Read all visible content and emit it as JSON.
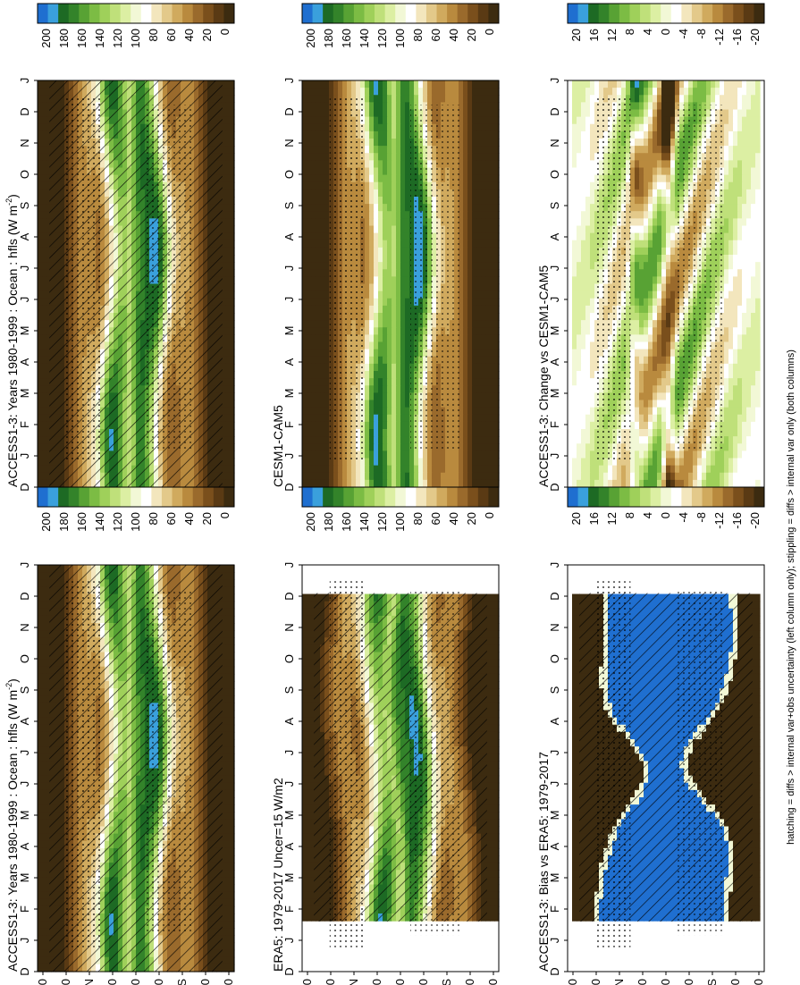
{
  "figure": {
    "footer": "hatching = diffs > internal var+obs uncertainty (left column only); stippling = diffs > internal var only (both columns)",
    "colors": {
      "abs_scale": [
        "#3c2b10",
        "#5a3a14",
        "#7a4f1c",
        "#9a6a2c",
        "#b98a3e",
        "#d0aa5e",
        "#e3c98a",
        "#f3e6bd",
        "#ffffff",
        "#f2f8d6",
        "#dcefa3",
        "#bfe07a",
        "#9fd05a",
        "#7cbc44",
        "#58a234",
        "#33832a",
        "#1d6a24",
        "#3aa0dc",
        "#1f6fd0"
      ],
      "diff_scale": [
        "#3c2b10",
        "#5a3a14",
        "#7a4f1c",
        "#9a6a2c",
        "#b98a3e",
        "#d0aa5e",
        "#e3c98a",
        "#f3e6bd",
        "#ffffff",
        "#f2f8d6",
        "#dcefa3",
        "#bfe07a",
        "#9fd05a",
        "#7cbc44",
        "#58a234",
        "#33832a",
        "#1d6a24",
        "#3aa0dc",
        "#1f6fd0"
      ]
    }
  },
  "chart_data": [
    {
      "type": "heatmap",
      "title": "ACCESS1-3: Years 1980-1999 : Ocean : hfls (W m",
      "title_sup": "-2",
      "title_close": ")",
      "x_ticks": [
        "D",
        "J",
        "F",
        "M",
        "A",
        "M",
        "J",
        "J",
        "A",
        "S",
        "O",
        "N",
        "D",
        "J"
      ],
      "y_ticks": [
        "80",
        "60",
        "°N",
        "20",
        "0",
        "20",
        "°S",
        "60",
        "80"
      ],
      "colorbar_ticks": [
        "200",
        "180",
        "160",
        "140",
        "120",
        "100",
        "80",
        "60",
        "40",
        "20",
        "0"
      ],
      "value_range": [
        0,
        200
      ]
    },
    {
      "type": "heatmap",
      "title": "ACCESS1-3: Years 1980-1999 : Ocean : hfls (W m",
      "title_sup": "-2",
      "title_close": ")",
      "x_ticks": [
        "D",
        "J",
        "F",
        "M",
        "A",
        "M",
        "J",
        "J",
        "A",
        "S",
        "O",
        "N",
        "D",
        "J"
      ],
      "y_ticks": [
        "80",
        "60",
        "°N",
        "20",
        "0",
        "20",
        "°S",
        "60",
        "80"
      ],
      "colorbar_ticks": [
        "200",
        "180",
        "160",
        "140",
        "120",
        "100",
        "80",
        "60",
        "40",
        "20",
        "0"
      ],
      "value_range": [
        0,
        200
      ]
    },
    {
      "type": "heatmap",
      "title": "CESM1-CAM5",
      "x_ticks": [
        "D",
        "J",
        "F",
        "M",
        "A",
        "M",
        "J",
        "J",
        "A",
        "S",
        "O",
        "N",
        "D",
        "J"
      ],
      "y_ticks": [
        "80",
        "60",
        "°N",
        "20",
        "0",
        "20",
        "°S",
        "60",
        "80"
      ],
      "colorbar_ticks": [
        "200",
        "180",
        "160",
        "140",
        "120",
        "100",
        "80",
        "60",
        "40",
        "20",
        "0"
      ],
      "value_range": [
        0,
        200
      ]
    },
    {
      "type": "heatmap",
      "title": "ERA5: 1979-2017 Uncer=15 W/m2",
      "x_ticks": [
        "D",
        "J",
        "F",
        "M",
        "A",
        "M",
        "J",
        "J",
        "A",
        "S",
        "O",
        "N",
        "D",
        "J"
      ],
      "y_ticks": [
        "80",
        "60",
        "°N",
        "20",
        "0",
        "20",
        "°S",
        "60",
        "80"
      ],
      "colorbar_ticks": [
        "200",
        "180",
        "160",
        "140",
        "120",
        "100",
        "80",
        "60",
        "40",
        "20",
        "0"
      ],
      "value_range": [
        0,
        200
      ]
    },
    {
      "type": "heatmap",
      "title": "ACCESS1-3: Change vs CESM1-CAM5",
      "x_ticks": [
        "D",
        "J",
        "F",
        "M",
        "A",
        "M",
        "J",
        "J",
        "A",
        "S",
        "O",
        "N",
        "D",
        "J"
      ],
      "y_ticks": [
        "80",
        "60",
        "°N",
        "20",
        "0",
        "20",
        "°S",
        "60",
        "80"
      ],
      "colorbar_ticks": [
        "20",
        "16",
        "12",
        "8",
        "4",
        "0",
        "-4",
        "-8",
        "-12",
        "-16",
        "-20"
      ],
      "value_range": [
        -20,
        20
      ]
    },
    {
      "type": "heatmap",
      "title": "ACCESS1-3: Bias vs ERA5: 1979-2017",
      "x_ticks": [
        "D",
        "J",
        "F",
        "M",
        "A",
        "M",
        "J",
        "J",
        "A",
        "S",
        "O",
        "N",
        "D",
        "J"
      ],
      "y_ticks": [
        "80",
        "60",
        "°N",
        "20",
        "0",
        "20",
        "°S",
        "60",
        "80"
      ],
      "colorbar_ticks": [
        "20",
        "16",
        "12",
        "8",
        "4",
        "0",
        "-4",
        "-8",
        "-12",
        "-16",
        "-20"
      ],
      "value_range": [
        -20,
        20
      ]
    }
  ]
}
